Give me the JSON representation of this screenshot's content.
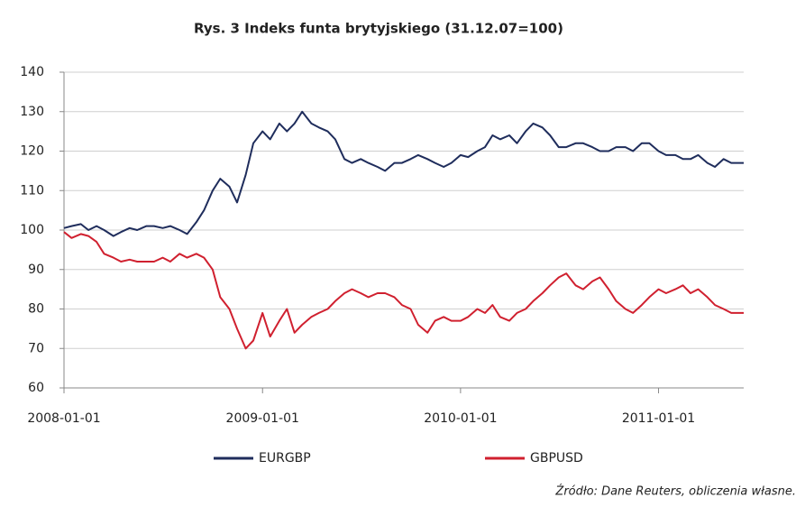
{
  "chart_data": {
    "type": "line",
    "title": "Rys. 3 Indeks funta brytyjskiego (31.12.07=100)",
    "source": "Źródło: Dane Reuters, obliczenia własne.",
    "x": [
      "2008-01-01",
      "2008-01-15",
      "2008-02-01",
      "2008-02-15",
      "2008-03-01",
      "2008-03-15",
      "2008-04-01",
      "2008-04-15",
      "2008-05-01",
      "2008-05-15",
      "2008-06-01",
      "2008-06-15",
      "2008-07-01",
      "2008-07-15",
      "2008-08-01",
      "2008-08-15",
      "2008-09-01",
      "2008-09-15",
      "2008-10-01",
      "2008-10-15",
      "2008-11-01",
      "2008-11-15",
      "2008-12-01",
      "2008-12-15",
      "2009-01-01",
      "2009-01-15",
      "2009-02-01",
      "2009-02-15",
      "2009-03-01",
      "2009-03-15",
      "2009-04-01",
      "2009-04-15",
      "2009-05-01",
      "2009-05-15",
      "2009-06-01",
      "2009-06-15",
      "2009-07-01",
      "2009-07-15",
      "2009-08-01",
      "2009-08-15",
      "2009-09-01",
      "2009-09-15",
      "2009-10-01",
      "2009-10-15",
      "2009-11-01",
      "2009-11-15",
      "2009-12-01",
      "2009-12-15",
      "2010-01-01",
      "2010-01-15",
      "2010-02-01",
      "2010-02-15",
      "2010-03-01",
      "2010-03-15",
      "2010-04-01",
      "2010-04-15",
      "2010-05-01",
      "2010-05-15",
      "2010-06-01",
      "2010-06-15",
      "2010-07-01",
      "2010-07-15",
      "2010-08-01",
      "2010-08-15",
      "2010-09-01",
      "2010-09-15",
      "2010-10-01",
      "2010-10-15",
      "2010-11-01",
      "2010-11-15",
      "2010-12-01",
      "2010-12-15",
      "2011-01-01",
      "2011-01-15",
      "2011-02-01",
      "2011-02-15",
      "2011-03-01",
      "2011-03-15",
      "2011-04-01",
      "2011-04-15",
      "2011-05-01",
      "2011-05-15",
      "2011-06-07"
    ],
    "series": [
      {
        "name": "EURGBP",
        "color": "#1f2d5c",
        "values": [
          100.5,
          101,
          101.5,
          100,
          101,
          100,
          98.5,
          99.5,
          100.5,
          100,
          101,
          101,
          100.5,
          101,
          100,
          99,
          102,
          105,
          110,
          113,
          111,
          107,
          114,
          122,
          125,
          123,
          127,
          125,
          127,
          130,
          127,
          126,
          125,
          123,
          118,
          117,
          118,
          117,
          116,
          115,
          117,
          117,
          118,
          119,
          118,
          117,
          116,
          117,
          119,
          118.5,
          120,
          121,
          124,
          123,
          124,
          122,
          125,
          127,
          126,
          124,
          121,
          121,
          122,
          122,
          121,
          120,
          120,
          121,
          121,
          120,
          122,
          122,
          120,
          119,
          119,
          118,
          118,
          119,
          117,
          116,
          118,
          117,
          117
        ]
      },
      {
        "name": "GBPUSD",
        "color": "#d0202f",
        "values": [
          99.5,
          98,
          99,
          98.5,
          97,
          94,
          93,
          92,
          92.5,
          92,
          92,
          92,
          93,
          92,
          94,
          93,
          94,
          93,
          90,
          83,
          80,
          75,
          70,
          72,
          79,
          73,
          77,
          80,
          74,
          76,
          78,
          79,
          80,
          82,
          84,
          85,
          84,
          83,
          84,
          84,
          83,
          81,
          80,
          76,
          74,
          77,
          78,
          77,
          77,
          78,
          80,
          79,
          81,
          78,
          77,
          79,
          80,
          82,
          84,
          86,
          88,
          89,
          86,
          85,
          87,
          88,
          85,
          82,
          80,
          79,
          81,
          83,
          85,
          84,
          85,
          86,
          84,
          85,
          83,
          81,
          80,
          79,
          79
        ]
      }
    ],
    "xlim": [
      "2008-01-01",
      "2011-06-07"
    ],
    "xticks": [
      "2008-01-01",
      "2009-01-01",
      "2010-01-01",
      "2011-01-01"
    ],
    "ylim": [
      60,
      140
    ],
    "yticks": [
      60,
      70,
      80,
      90,
      100,
      110,
      120,
      130,
      140
    ],
    "grid": true,
    "legend": "bottom"
  }
}
